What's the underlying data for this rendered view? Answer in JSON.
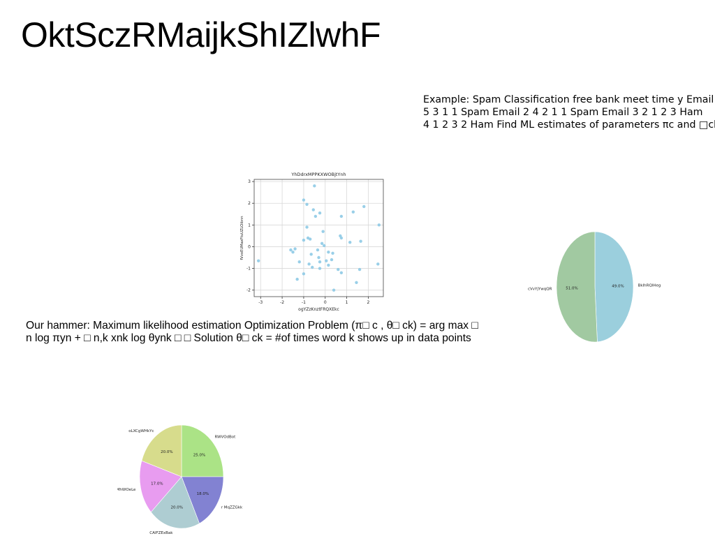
{
  "page": {
    "title": "OktSczRMaijkShIZlwhF"
  },
  "example_text": {
    "lines": [
      "Example: Spam Classification free bank meet time y Email",
      "5 3 1 1 Spam Email 2 4 2 1 1 Spam Email 3 2 1 2 3 Ham",
      "4 1 2 3 2 Ham Find ML estimates of parameters πc and □ck"
    ]
  },
  "hammer_text": {
    "lines": [
      "Our hammer: Maximum likelihood estimation Optimization Problem (π□ c , θ□ ck) = arg max □",
      "n log πyn + □ n,k xnk log θynk □ □ Solution θ□ ck = #of times word k shows up in data points"
    ]
  },
  "chart_data": [
    {
      "type": "scatter",
      "title": "YhDdrxMPPKXWOBjtYnh",
      "xlabel": "ogYZzKnztFRQXEkc",
      "ylabel": "fVvoEUMaxFtuUZLOibnn",
      "xlim": [
        -3.3,
        2.7
      ],
      "ylim": [
        -2.3,
        3.1
      ],
      "xticks": [
        -3,
        -2,
        -1,
        0,
        1,
        2
      ],
      "yticks": [
        -2,
        -1,
        0,
        1,
        2,
        3
      ],
      "grid": true,
      "color": "#8ecae6",
      "points": [
        {
          "x": -3.1,
          "y": -0.65
        },
        {
          "x": -1.6,
          "y": -0.15
        },
        {
          "x": -1.5,
          "y": -0.25
        },
        {
          "x": -1.4,
          "y": -0.1
        },
        {
          "x": -1.3,
          "y": -1.5
        },
        {
          "x": -1.2,
          "y": -0.7
        },
        {
          "x": -1.0,
          "y": 2.15
        },
        {
          "x": -1.0,
          "y": 0.3
        },
        {
          "x": -1.0,
          "y": -1.25
        },
        {
          "x": -0.85,
          "y": 1.95
        },
        {
          "x": -0.85,
          "y": 0.9
        },
        {
          "x": -0.8,
          "y": 0.4
        },
        {
          "x": -0.75,
          "y": -0.8
        },
        {
          "x": -0.7,
          "y": 0.35
        },
        {
          "x": -0.65,
          "y": -0.35
        },
        {
          "x": -0.6,
          "y": -0.95
        },
        {
          "x": -0.55,
          "y": 1.7
        },
        {
          "x": -0.5,
          "y": 2.8
        },
        {
          "x": -0.45,
          "y": 1.4
        },
        {
          "x": -0.35,
          "y": -0.15
        },
        {
          "x": -0.3,
          "y": -0.5
        },
        {
          "x": -0.25,
          "y": 1.55
        },
        {
          "x": -0.25,
          "y": -0.7
        },
        {
          "x": -0.25,
          "y": -1.0
        },
        {
          "x": -0.15,
          "y": 0.15
        },
        {
          "x": -0.1,
          "y": 0.7
        },
        {
          "x": -0.05,
          "y": 0.05
        },
        {
          "x": 0.05,
          "y": -0.65
        },
        {
          "x": 0.15,
          "y": -0.25
        },
        {
          "x": 0.15,
          "y": -0.85
        },
        {
          "x": 0.3,
          "y": -0.6
        },
        {
          "x": 0.35,
          "y": -0.3
        },
        {
          "x": 0.4,
          "y": -2.0
        },
        {
          "x": 0.6,
          "y": -1.05
        },
        {
          "x": 0.7,
          "y": 0.5
        },
        {
          "x": 0.75,
          "y": 0.4
        },
        {
          "x": 0.75,
          "y": 1.4
        },
        {
          "x": 0.75,
          "y": -1.2
        },
        {
          "x": 1.15,
          "y": 0.2
        },
        {
          "x": 1.3,
          "y": 1.6
        },
        {
          "x": 1.45,
          "y": -1.65
        },
        {
          "x": 1.6,
          "y": -1.05
        },
        {
          "x": 1.65,
          "y": 0.25
        },
        {
          "x": 1.8,
          "y": 1.85
        },
        {
          "x": 2.45,
          "y": -0.8
        },
        {
          "x": 2.5,
          "y": 1.0
        }
      ]
    },
    {
      "type": "pie",
      "title": "",
      "slices": [
        {
          "label": "BkIhRQlHeg",
          "value": 49.0,
          "pct_label": "49.0%",
          "color": "#9bcfdd"
        },
        {
          "label": "cVvYjYwqQR",
          "value": 51.0,
          "pct_label": "51.0%",
          "color": "#a1c9a1"
        }
      ]
    },
    {
      "type": "pie",
      "title": "",
      "slices": [
        {
          "label": "RWVOdBot",
          "value": 25.0,
          "pct_label": "25.0%",
          "color": "#abe386"
        },
        {
          "label": "r MqZZGkk",
          "value": 18.0,
          "pct_label": "18.0%",
          "color": "#8282d2"
        },
        {
          "label": "CAlFZExBak",
          "value": 20.0,
          "pct_label": "20.0%",
          "color": "#aecdd2"
        },
        {
          "label": "MhWOeLe",
          "value": 17.0,
          "pct_label": "17.0%",
          "color": "#e89cf0"
        },
        {
          "label": "oLXCgWHkYc",
          "value": 20.0,
          "pct_label": "20.0%",
          "color": "#d7dc8c"
        }
      ]
    }
  ]
}
